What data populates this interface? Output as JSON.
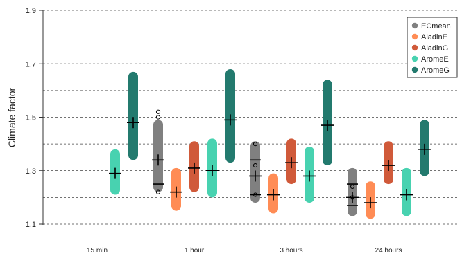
{
  "chart_data": {
    "type": "range-bar",
    "title": "",
    "xlabel": "",
    "ylabel": "Climate factor",
    "ylim": [
      1.1,
      1.9
    ],
    "y_ticks": [
      "1.1",
      "1.3",
      "1.5",
      "1.7",
      "1.9"
    ],
    "grid": "dashed-horizontal",
    "legend_position": "top-right",
    "categories": [
      "15 min",
      "1 hour",
      "3 hours",
      "24 hours"
    ],
    "series": [
      {
        "name": "ECmean",
        "color": "#808080",
        "data": [
          null,
          {
            "low": 1.22,
            "high": 1.49,
            "median": 1.34,
            "extra": [
              1.25
            ],
            "outliers": [
              1.52,
              1.5,
              1.22
            ]
          },
          {
            "low": 1.18,
            "high": 1.41,
            "median": 1.28,
            "extra": [
              1.34,
              1.21
            ],
            "outliers": [
              1.4,
              1.32,
              1.21
            ]
          },
          {
            "low": 1.13,
            "high": 1.31,
            "median": 1.2,
            "extra": [
              1.25,
              1.17
            ],
            "outliers": [
              1.24,
              1.2
            ]
          }
        ]
      },
      {
        "name": "AladinE",
        "color": "#ff8c55",
        "data": [
          null,
          {
            "low": 1.15,
            "high": 1.31,
            "median": 1.22
          },
          {
            "low": 1.14,
            "high": 1.29,
            "median": 1.21
          },
          {
            "low": 1.12,
            "high": 1.26,
            "median": 1.18
          }
        ]
      },
      {
        "name": "AladinG",
        "color": "#d05a3a",
        "data": [
          null,
          {
            "low": 1.22,
            "high": 1.41,
            "median": 1.31
          },
          {
            "low": 1.25,
            "high": 1.42,
            "median": 1.33
          },
          {
            "low": 1.25,
            "high": 1.41,
            "median": 1.32
          }
        ]
      },
      {
        "name": "AromeE",
        "color": "#48d2b0",
        "data": [
          {
            "low": 1.21,
            "high": 1.38,
            "median": 1.29
          },
          {
            "low": 1.2,
            "high": 1.42,
            "median": 1.3
          },
          {
            "low": 1.18,
            "high": 1.39,
            "median": 1.28
          },
          {
            "low": 1.13,
            "high": 1.31,
            "median": 1.21
          }
        ]
      },
      {
        "name": "AromeG",
        "color": "#237a6e",
        "data": [
          {
            "low": 1.34,
            "high": 1.67,
            "median": 1.48
          },
          {
            "low": 1.33,
            "high": 1.68,
            "median": 1.49
          },
          {
            "low": 1.32,
            "high": 1.64,
            "median": 1.47
          },
          {
            "low": 1.28,
            "high": 1.49,
            "median": 1.38
          }
        ]
      }
    ]
  }
}
